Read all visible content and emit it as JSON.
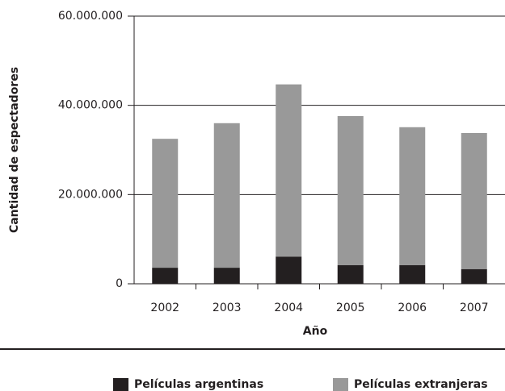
{
  "chart_data": {
    "type": "stacked_bar",
    "y_label": "Cantidad de espectadores",
    "x_label": "Año",
    "categories": [
      "2002",
      "2003",
      "2004",
      "2005",
      "2006",
      "2007"
    ],
    "series": [
      {
        "name": "Películas argentinas",
        "color": "#231f20",
        "values": [
          3600000,
          3600000,
          6100000,
          4200000,
          4200000,
          3300000
        ]
      },
      {
        "name": "Películas extranjeras",
        "color": "#999999",
        "values": [
          28900000,
          32400000,
          38600000,
          33400000,
          30900000,
          30500000
        ]
      }
    ],
    "ylim": [
      0,
      60000000
    ],
    "yticks": [
      {
        "value": 0,
        "label": "0"
      },
      {
        "value": 20000000,
        "label": "20.000.000"
      },
      {
        "value": 40000000,
        "label": "40.000.000"
      },
      {
        "value": 60000000,
        "label": "60.000.000"
      }
    ],
    "grid": true
  }
}
